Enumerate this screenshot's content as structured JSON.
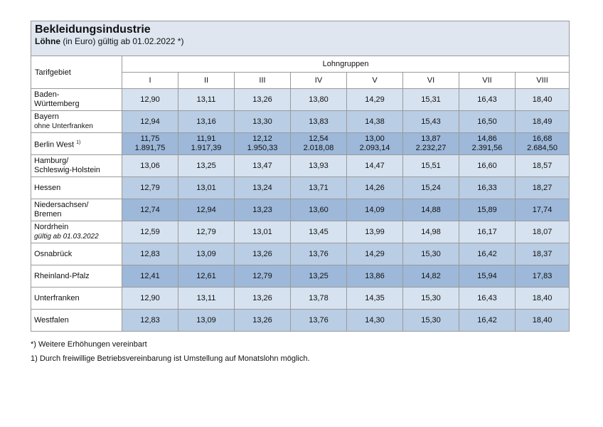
{
  "title": "Bekleidungsindustrie",
  "subtitle": {
    "bold": "Löhne",
    "rest": " (in Euro) gültig ab 01.02.2022 *)"
  },
  "header": {
    "tarifgebiet": "Tarifgebiet",
    "lohngruppen": "Lohngruppen",
    "groups": [
      "I",
      "II",
      "III",
      "IV",
      "V",
      "VI",
      "VII",
      "VIII"
    ]
  },
  "rows": [
    {
      "label": [
        "Baden-",
        "Württemberg"
      ],
      "values": [
        "12,90",
        "13,11",
        "13,26",
        "13,80",
        "14,29",
        "15,31",
        "16,43",
        "18,40"
      ]
    },
    {
      "label": [
        "Bayern"
      ],
      "sub": "ohne Unterfranken",
      "values": [
        "12,94",
        "13,16",
        "13,30",
        "13,83",
        "14,38",
        "15,43",
        "16,50",
        "18,49"
      ]
    },
    {
      "label": [
        "Berlin West"
      ],
      "sup": "1)",
      "values": [
        "11,75",
        "11,91",
        "12,12",
        "12,54",
        "13,00",
        "13,87",
        "14,86",
        "16,68"
      ],
      "monthly": [
        "1.891,75",
        "1.917,39",
        "1.950,33",
        "2.018,08",
        "2.093,14",
        "2.232,27",
        "2.391,56",
        "2.684,50"
      ]
    },
    {
      "label": [
        "Hamburg/",
        "Schleswig-Holstein"
      ],
      "values": [
        "13,06",
        "13,25",
        "13,47",
        "13,93",
        "14,47",
        "15,51",
        "16,60",
        "18,57"
      ]
    },
    {
      "label": [
        "Hessen"
      ],
      "values": [
        "12,79",
        "13,01",
        "13,24",
        "13,71",
        "14,26",
        "15,24",
        "16,33",
        "18,27"
      ]
    },
    {
      "label": [
        "Niedersachsen/",
        "Bremen"
      ],
      "values": [
        "12,74",
        "12,94",
        "13,23",
        "13,60",
        "14,09",
        "14,88",
        "15,89",
        "17,74"
      ]
    },
    {
      "label": [
        "Nordrhein"
      ],
      "italic": "gültig ab 01.03.2022",
      "values": [
        "12,59",
        "12,79",
        "13,01",
        "13,45",
        "13,99",
        "14,98",
        "16,17",
        "18,07"
      ]
    },
    {
      "label": [
        "Osnabrück"
      ],
      "values": [
        "12,83",
        "13,09",
        "13,26",
        "13,76",
        "14,29",
        "15,30",
        "16,42",
        "18,37"
      ]
    },
    {
      "label": [
        "Rheinland-Pfalz"
      ],
      "values": [
        "12,41",
        "12,61",
        "12,79",
        "13,25",
        "13,86",
        "14,82",
        "15,94",
        "17,83"
      ]
    },
    {
      "label": [
        "Unterfranken"
      ],
      "values": [
        "12,90",
        "13,11",
        "13,26",
        "13,78",
        "14,35",
        "15,30",
        "16,43",
        "18,40"
      ]
    },
    {
      "label": [
        "Westfalen"
      ],
      "values": [
        "12,83",
        "13,09",
        "13,26",
        "13,76",
        "14,30",
        "15,30",
        "16,42",
        "18,40"
      ]
    }
  ],
  "notes": [
    "*)  Weitere Erhöhungen vereinbart",
    "1) Durch freiwillige Betriebsvereinbarung ist Umstellung auf Monatslohn möglich."
  ]
}
